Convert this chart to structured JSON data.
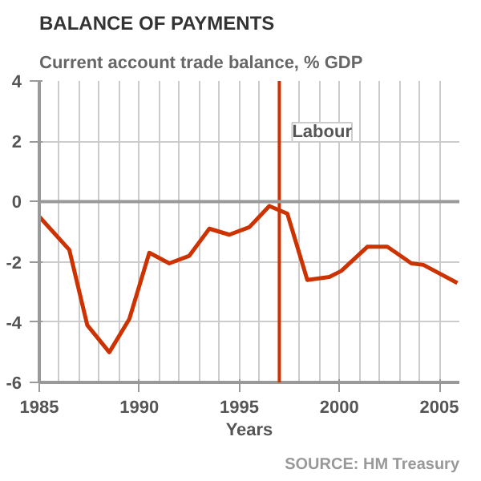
{
  "chart_data": {
    "type": "line",
    "title": "BALANCE OF PAYMENTS",
    "subtitle": "Current account trade balance, % GDP",
    "xlabel": "Years",
    "annotations": [
      "SOURCE: HM Treasury"
    ],
    "x": [
      1985,
      1986.5,
      1987.4,
      1988.5,
      1989.5,
      1990.5,
      1991.5,
      1992.5,
      1993.5,
      1994.5,
      1995.5,
      1996.5,
      1997.4,
      1998.4,
      1999.5,
      2000.1,
      2001.4,
      2002.4,
      2003.6,
      2004.2,
      2005.9
    ],
    "series": [
      {
        "color": "#cc3300",
        "values": [
          -0.5,
          -1.6,
          -4.1,
          -5.0,
          -3.9,
          -1.7,
          -2.05,
          -1.8,
          -0.9,
          -1.1,
          -0.85,
          -0.15,
          -0.4,
          -2.6,
          -2.5,
          -2.3,
          -1.5,
          -1.5,
          -2.05,
          -2.1,
          -2.7
        ]
      }
    ],
    "xlim": [
      1985,
      2006
    ],
    "ylim": [
      -6,
      4
    ],
    "xticks": [
      1985,
      1990,
      1995,
      2000,
      2005
    ],
    "yticks": [
      -6,
      -4,
      -2,
      0,
      2,
      4
    ],
    "ref_lines": [
      {
        "axis": "x",
        "value": 1997,
        "label": "Labour",
        "color": "#cc3300"
      },
      {
        "axis": "y",
        "value": 0,
        "label": null,
        "color": "#999999"
      }
    ],
    "grid": true,
    "marker": "none",
    "line_style": "solid"
  }
}
